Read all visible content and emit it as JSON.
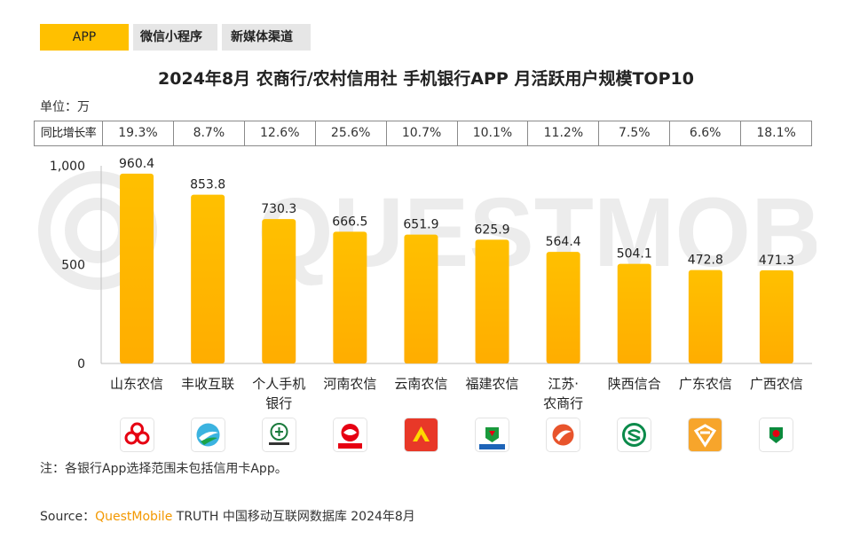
{
  "tabs": [
    {
      "label": "APP",
      "active": true
    },
    {
      "label": "微信小程序",
      "active": false
    },
    {
      "label": "新媒体渠道",
      "active": false
    }
  ],
  "title": "2024年8月 农商行/农村信用社 手机银行APP 月活跃用户规模TOP10",
  "unit": "单位：万",
  "growth_label": "同比增长率",
  "growth": [
    "19.3%",
    "8.7%",
    "12.6%",
    "25.6%",
    "10.7%",
    "10.1%",
    "11.2%",
    "7.5%",
    "6.6%",
    "18.1%"
  ],
  "chart_data": {
    "type": "bar",
    "categories": [
      "山东农信",
      "丰收互联",
      "个人手机银行",
      "河南农信",
      "云南农信",
      "福建农信",
      "江苏·农商行",
      "陕西信合",
      "广东农信",
      "广西农信"
    ],
    "category_display": [
      [
        "山东农信"
      ],
      [
        "丰收互联"
      ],
      [
        "个人手机",
        "银行"
      ],
      [
        "河南农信"
      ],
      [
        "云南农信"
      ],
      [
        "福建农信"
      ],
      [
        "江苏·",
        "农商行"
      ],
      [
        "陕西信合"
      ],
      [
        "广东农信"
      ],
      [
        "广西农信"
      ]
    ],
    "values": [
      960.4,
      853.8,
      730.3,
      666.5,
      651.9,
      625.9,
      564.4,
      504.1,
      472.8,
      471.3
    ],
    "value_labels": [
      "960.4",
      "853.8",
      "730.3",
      "666.5",
      "651.9",
      "625.9",
      "564.4",
      "504.1",
      "472.8",
      "471.3"
    ],
    "ylim": [
      0,
      1000
    ],
    "yticks": [
      0,
      500,
      1000
    ],
    "ytick_labels": [
      "0",
      "500",
      "1,000"
    ],
    "grid": false,
    "bar_color_top": "#ffc000",
    "bar_color_bottom": "#ffad00"
  },
  "logos": [
    {
      "icon": "shandong-rural-credit-icon",
      "bg": "#ffffff",
      "fg": "#e60012"
    },
    {
      "icon": "fengshou-hulian-icon",
      "bg": "#ffffff",
      "fg": "#1aa34a"
    },
    {
      "icon": "sichuan-rural-credit-icon",
      "bg": "#ffffff",
      "fg": "#1a7a3c"
    },
    {
      "icon": "henan-rural-credit-icon",
      "bg": "#ffffff",
      "fg": "#e60012"
    },
    {
      "icon": "yunnan-rural-credit-icon",
      "bg": "#e83828",
      "fg": "#ffd700"
    },
    {
      "icon": "fujian-rural-credit-icon",
      "bg": "#ffffff",
      "fg": "#1a9a3c"
    },
    {
      "icon": "jiangsu-rural-bank-icon",
      "bg": "#ffffff",
      "fg": "#e8542c"
    },
    {
      "icon": "shaanxi-xinhe-icon",
      "bg": "#ffffff",
      "fg": "#0a8a4a"
    },
    {
      "icon": "guangdong-rural-credit-icon",
      "bg": "#f7a52b",
      "fg": "#ffffff"
    },
    {
      "icon": "guangxi-rural-credit-icon",
      "bg": "#ffffff",
      "fg": "#0a8a3c"
    }
  ],
  "note": "注：各银行App选择范围未包括信用卡App。",
  "source": {
    "prefix": "Source：",
    "brand": "QuestMobile",
    "rest": " TRUTH 中国移动互联网数据库 2024年8月"
  },
  "watermark": "QUESTMOBILE"
}
